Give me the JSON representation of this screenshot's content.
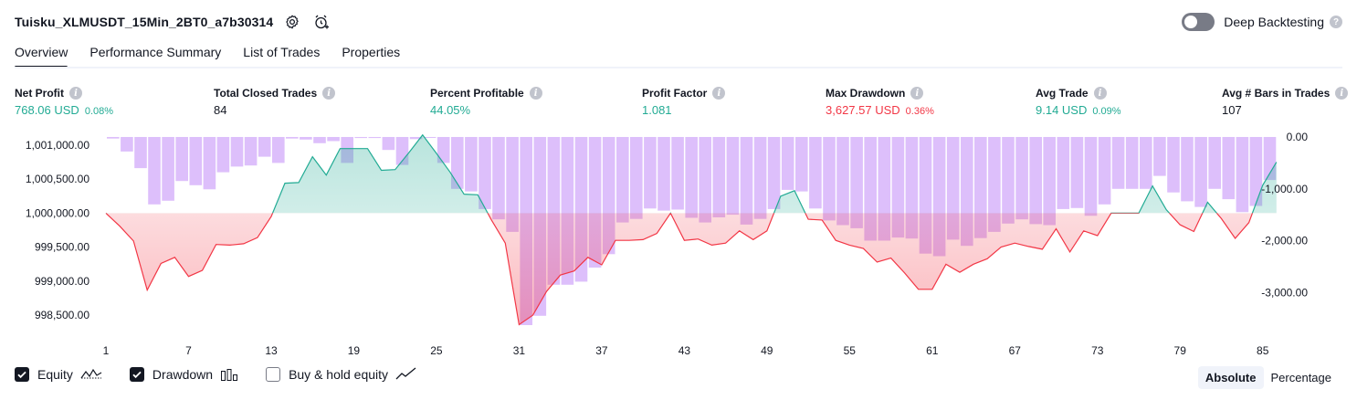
{
  "header": {
    "strategy_title": "Tuisku_XLMUSDT_15Min_2BT0_a7b30314",
    "settings_icon": "gear-icon",
    "alert_icon": "alarm-add-icon",
    "deep_backtesting_label": "Deep Backtesting",
    "deep_backtesting_on": false
  },
  "tabs": [
    {
      "label": "Overview",
      "active": true
    },
    {
      "label": "Performance Summary",
      "active": false
    },
    {
      "label": "List of Trades",
      "active": false
    },
    {
      "label": "Properties",
      "active": false
    }
  ],
  "stats": {
    "net_profit": {
      "label": "Net Profit",
      "value": "768.06 USD",
      "pct": "0.08%"
    },
    "total_closed_trades": {
      "label": "Total Closed Trades",
      "value": "84"
    },
    "percent_profitable": {
      "label": "Percent Profitable",
      "value": "44.05%"
    },
    "profit_factor": {
      "label": "Profit Factor",
      "value": "1.081"
    },
    "max_drawdown": {
      "label": "Max Drawdown",
      "value": "3,627.57 USD",
      "pct": "0.36%"
    },
    "avg_trade": {
      "label": "Avg Trade",
      "value": "9.14 USD",
      "pct": "0.09%"
    },
    "avg_bars": {
      "label": "Avg # Bars in Trades",
      "value": "107"
    }
  },
  "chart_data": {
    "type": "line",
    "left_axis": {
      "ticks": [
        "1,001,000.00",
        "1,000,500.00",
        "1,000,000.00",
        "999,500.00",
        "999,000.00",
        "998,500.00"
      ],
      "range": [
        998300,
        1001120
      ],
      "baseline": 1000000
    },
    "right_axis": {
      "ticks": [
        "0.00",
        "-1,000.00",
        "-2,000.00",
        "-3,000.00"
      ],
      "range": [
        -3700,
        0
      ]
    },
    "x_ticks": [
      "1",
      "7",
      "13",
      "19",
      "25",
      "31",
      "37",
      "43",
      "49",
      "55",
      "61",
      "67",
      "73",
      "79",
      "85"
    ],
    "x_range": [
      1,
      86
    ],
    "series": [
      {
        "name": "Equity",
        "x": [
          1,
          2,
          3,
          4,
          5,
          6,
          7,
          8,
          9,
          10,
          11,
          12,
          13,
          14,
          15,
          16,
          17,
          18,
          19,
          20,
          21,
          22,
          23,
          24,
          25,
          26,
          27,
          28,
          29,
          30,
          31,
          32,
          33,
          34,
          35,
          36,
          37,
          38,
          39,
          40,
          41,
          42,
          43,
          44,
          45,
          46,
          47,
          48,
          49,
          50,
          51,
          52,
          53,
          54,
          55,
          56,
          57,
          58,
          59,
          60,
          61,
          62,
          63,
          64,
          65,
          66,
          67,
          68,
          69,
          70,
          71,
          72,
          73,
          74,
          75,
          76,
          77,
          78,
          79,
          80,
          81,
          82,
          83,
          84,
          85,
          86
        ],
        "values": [
          1000000,
          999810,
          999590,
          998870,
          999260,
          999350,
          999070,
          999160,
          999540,
          999530,
          999550,
          999640,
          999950,
          1000440,
          1000450,
          1000830,
          1000560,
          1000950,
          1000950,
          1000950,
          1000630,
          1000640,
          1000890,
          1001150,
          1000880,
          1000600,
          1000280,
          1000270,
          999900,
          999560,
          998360,
          998500,
          998850,
          999090,
          999150,
          999350,
          999240,
          999600,
          999600,
          999610,
          999700,
          1000000,
          999600,
          999620,
          999530,
          999560,
          999740,
          999610,
          999740,
          1000250,
          1000330,
          999910,
          999900,
          999600,
          999530,
          999480,
          999280,
          999340,
          999120,
          998880,
          998880,
          999250,
          999130,
          999250,
          999330,
          999500,
          999560,
          999510,
          999470,
          999770,
          999430,
          999740,
          999670,
          1000000,
          1000000,
          1000000,
          1000400,
          1000050,
          999830,
          999730,
          1000160,
          999920,
          999630,
          999860,
          1000410,
          1000750
        ]
      },
      {
        "name": "Drawdown",
        "type": "bar",
        "x": [
          1,
          2,
          3,
          4,
          5,
          6,
          7,
          8,
          9,
          10,
          11,
          12,
          13,
          14,
          15,
          16,
          17,
          18,
          19,
          20,
          21,
          22,
          23,
          24,
          25,
          26,
          27,
          28,
          29,
          30,
          31,
          32,
          33,
          34,
          35,
          36,
          37,
          38,
          39,
          40,
          41,
          42,
          43,
          44,
          45,
          46,
          47,
          48,
          49,
          50,
          51,
          52,
          53,
          54,
          55,
          56,
          57,
          58,
          59,
          60,
          61,
          62,
          63,
          64,
          65,
          66,
          67,
          68,
          69,
          70,
          71,
          72,
          73,
          74,
          75,
          76,
          77,
          78,
          79,
          80,
          81,
          82,
          83,
          84,
          85
        ],
        "values": [
          -30,
          -280,
          -600,
          -1300,
          -1230,
          -850,
          -930,
          -1010,
          -680,
          -570,
          -550,
          -380,
          -500,
          -30,
          -50,
          -120,
          -80,
          -500,
          -20,
          -20,
          -250,
          -540,
          -40,
          0,
          -500,
          -1000,
          -1050,
          -1390,
          -1590,
          -1830,
          -3630,
          -3450,
          -2850,
          -2850,
          -2790,
          -2520,
          -2260,
          -1650,
          -1580,
          -1380,
          -1420,
          -1400,
          -1560,
          -1650,
          -1550,
          -1500,
          -1690,
          -1580,
          -1390,
          -1020,
          -1050,
          -1380,
          -1610,
          -1700,
          -1760,
          -2000,
          -2000,
          -1940,
          -1960,
          -2250,
          -2300,
          -1980,
          -2100,
          -1950,
          -1830,
          -1670,
          -1590,
          -1680,
          -1700,
          -1390,
          -1370,
          -1520,
          -1300,
          -1000,
          -1000,
          -1000,
          -750,
          -1070,
          -1240,
          -1350,
          -1000,
          -1200,
          -1450,
          -1330,
          -830
        ]
      }
    ]
  },
  "legend": {
    "equity": {
      "label": "Equity",
      "checked": true,
      "icon": "equity-line-icon"
    },
    "drawdown": {
      "label": "Drawdown",
      "checked": true,
      "icon": "bars-icon"
    },
    "buy_hold": {
      "label": "Buy & hold equity",
      "checked": false,
      "icon": "trend-line-icon"
    }
  },
  "mode": {
    "absolute": "Absolute",
    "percentage": "Percentage",
    "selected": "Absolute"
  },
  "colors": {
    "profit": "#22ab94",
    "loss": "#f23645",
    "drawdown_bar": "#d9b8fb",
    "text": "#131722"
  }
}
